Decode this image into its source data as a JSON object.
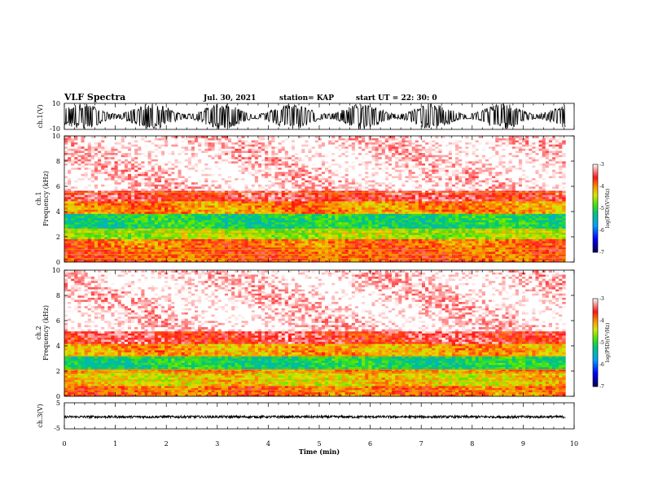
{
  "header": {
    "title": "VLF Spectra",
    "date": "Jul. 30, 2021",
    "station": "station= KAP",
    "start": "start  UT =   22: 30: 0"
  },
  "chart_data": [
    {
      "type": "line",
      "name": "ch1-waveform",
      "ylabel": "ch.1(V)",
      "ylim": [
        -10,
        10
      ],
      "yticks": [
        "10",
        "-10"
      ],
      "xlim": [
        0,
        10
      ],
      "x_extent": [
        0,
        9.83
      ],
      "description_values": {
        "typical_amplitude_range": [
          -10,
          10
        ]
      }
    },
    {
      "type": "heatmap",
      "name": "ch1-spectrogram",
      "ylabel": "ch.1\nFrequency (kHz)",
      "ylim": [
        0,
        10
      ],
      "yticks": [
        "0",
        "2",
        "4",
        "6",
        "8",
        "10"
      ],
      "xlim": [
        0,
        10
      ],
      "x_extent": [
        0,
        9.83
      ],
      "colorbar": {
        "label": "log(PSD)(V²/Hz)",
        "range": [
          -7,
          -3
        ],
        "ticks": [
          "-3",
          "-4",
          "-5",
          "-6",
          "-7"
        ]
      },
      "bands": [
        {
          "f": [
            0,
            1.2
          ],
          "level": -3.8
        },
        {
          "f": [
            1.2,
            1.9
          ],
          "level": -3.9
        },
        {
          "f": [
            1.9,
            2.6
          ],
          "level": -4.6
        },
        {
          "f": [
            2.6,
            3.8
          ],
          "level": -5.1
        },
        {
          "f": [
            3.8,
            4.8
          ],
          "level": -4.0
        },
        {
          "f": [
            4.8,
            5.6
          ],
          "level": -3.5
        },
        {
          "f": [
            5.6,
            10
          ],
          "level": -3.0
        }
      ],
      "lines_khz": [
        0.3,
        0.6,
        1.0,
        2.3,
        2.55,
        5.5
      ]
    },
    {
      "type": "heatmap",
      "name": "ch2-spectrogram",
      "ylabel": "ch.2\nFrequency (kHz)",
      "ylim": [
        0,
        10
      ],
      "yticks": [
        "0",
        "2",
        "4",
        "6",
        "8",
        "10"
      ],
      "xlim": [
        0,
        10
      ],
      "x_extent": [
        0,
        9.83
      ],
      "colorbar": {
        "label": "log(PSD)(V²/Hz)",
        "range": [
          -7,
          -3
        ],
        "ticks": [
          "-3",
          "-4",
          "-5",
          "-6",
          "-7"
        ]
      },
      "bands": [
        {
          "f": [
            0,
            0.8
          ],
          "level": -3.9
        },
        {
          "f": [
            0.8,
            1.8
          ],
          "level": -4.3
        },
        {
          "f": [
            1.8,
            2.2
          ],
          "level": -4.0
        },
        {
          "f": [
            2.2,
            3.2
          ],
          "level": -5.1
        },
        {
          "f": [
            3.2,
            4.2
          ],
          "level": -4.1
        },
        {
          "f": [
            4.2,
            5.2
          ],
          "level": -3.5
        },
        {
          "f": [
            5.2,
            10
          ],
          "level": -3.0
        }
      ],
      "lines_khz": [
        0.5,
        1.3,
        1.9,
        2.1,
        3.2
      ]
    },
    {
      "type": "line",
      "name": "ch3-waveform",
      "ylabel": "ch.3(V)",
      "ylim": [
        -5,
        5
      ],
      "yticks": [
        "5",
        "0",
        "-5"
      ],
      "xlim": [
        0,
        10
      ],
      "x_extent": [
        0,
        9.83
      ],
      "description_values": {
        "typical_amplitude_range": [
          -1.0,
          0.2
        ]
      }
    }
  ],
  "xaxis": {
    "label": "Time (min)",
    "ticks": [
      "0",
      "1",
      "2",
      "3",
      "4",
      "5",
      "6",
      "7",
      "8",
      "9",
      "10"
    ]
  }
}
